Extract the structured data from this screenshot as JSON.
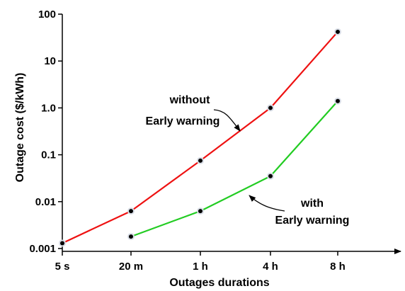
{
  "chart_data": {
    "type": "line",
    "xlabel": "Outages durations",
    "ylabel": "Outage cost ($/kWh)",
    "categories": [
      "5 s",
      "20 m",
      "1 h",
      "4 h",
      "8 h"
    ],
    "y_ticks": [
      "0.001",
      "0.01",
      "0.1",
      "1.0",
      "10",
      "100"
    ],
    "y_scale": "log",
    "ylim": [
      0.001,
      100
    ],
    "grid": false,
    "legend": "none",
    "series": [
      {
        "color": "#ee1111",
        "values": [
          0.0013,
          0.0063,
          0.075,
          1.0,
          42
        ]
      },
      {
        "color": "#22cc22",
        "values": [
          null,
          0.0018,
          0.0063,
          0.035,
          1.4
        ]
      }
    ],
    "annotations": [
      {
        "lines": [
          "without",
          "Early warning"
        ]
      },
      {
        "lines": [
          "with",
          "Early warning"
        ]
      }
    ]
  }
}
